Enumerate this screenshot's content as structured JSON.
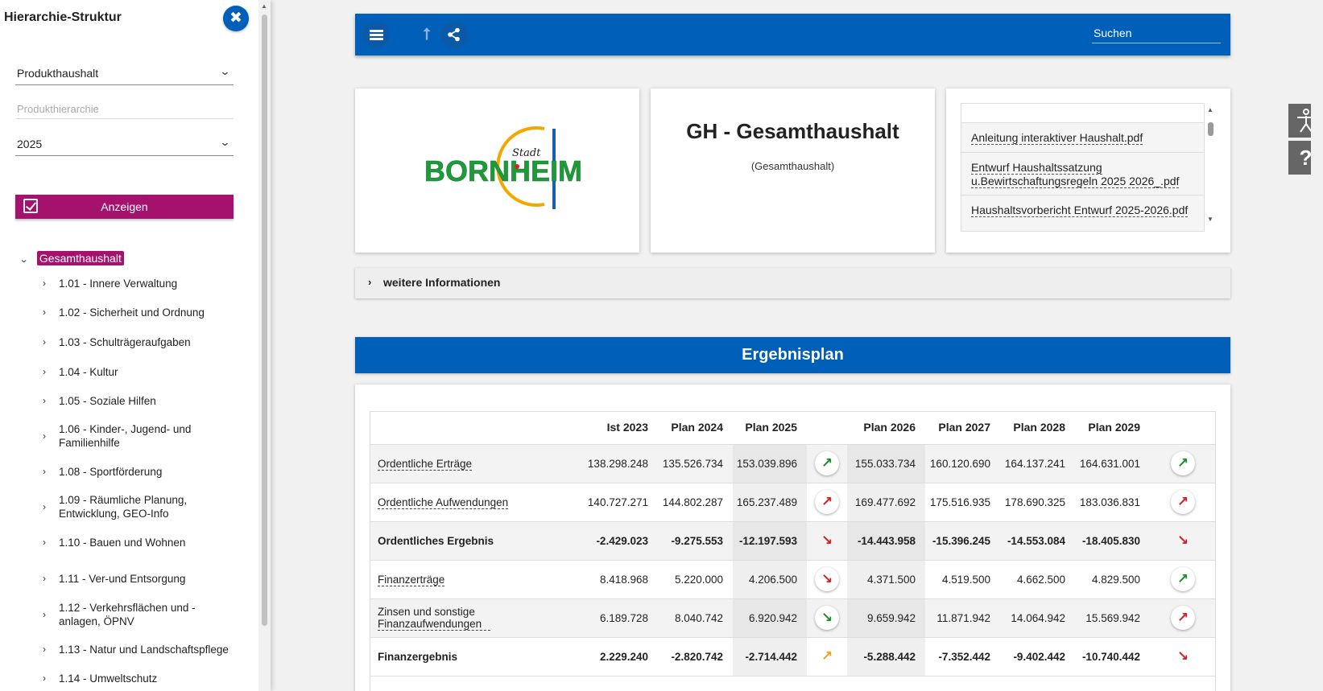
{
  "sidebar": {
    "title": "Hierarchie-Struktur",
    "close_icon": "close-icon",
    "select_budget": "Produkthaushalt",
    "hierarchy_placeholder": "Produkthierarchie",
    "select_year": "2025",
    "show_button": "Anzeigen",
    "tree_root": "Gesamthaushalt",
    "tree_items": [
      "1.01 - Innere Verwaltung",
      "1.02 - Sicherheit und Ordnung",
      "1.03 - Schulträgeraufgaben",
      "1.04 - Kultur",
      "1.05 - Soziale Hilfen",
      "1.06 - Kinder-, Jugend- und Familienhilfe",
      "1.08 - Sportförderung",
      "1.09 - Räumliche Planung, Entwicklung, GEO-Info",
      "1.10 - Bauen und Wohnen",
      "1.11 - Ver-und Entsorgung",
      "1.12 - Verkehrsflächen und -anlagen, ÖPNV",
      "1.13 - Natur und Landschaftspflege",
      "1.14 - Umweltschutz"
    ]
  },
  "topbar": {
    "search_label": "Suchen",
    "icons": [
      "menu-icon",
      "up-arrow-icon",
      "share-icon"
    ]
  },
  "logo": {
    "prefix": "Stadt",
    "name": "BORNHEIM"
  },
  "header": {
    "title": "GH - Gesamthaushalt",
    "subtitle": "(Gesamthaushalt)"
  },
  "documents": [
    "Anleitung interaktiver Haushalt.pdf",
    "Entwurf Haushaltssatzung u.Bewirtschaftungsregeln 2025 2026_.pdf",
    "Haushaltsvorbericht Entwurf 2025-2026.pdf"
  ],
  "info_bar": "weitere Informationen",
  "section": "Ergebnisplan",
  "table": {
    "columns": [
      "Ist 2023",
      "Plan 2024",
      "Plan 2025",
      "Plan 2026",
      "Plan 2027",
      "Plan 2028",
      "Plan 2029"
    ],
    "rows": [
      {
        "name": "Ordentliche Erträge",
        "values": [
          "138.298.248",
          "135.526.734",
          "153.039.896",
          "155.033.734",
          "160.120.690",
          "164.137.241",
          "164.631.001"
        ],
        "trend1": "up-green",
        "trend2": "up-green"
      },
      {
        "name": "Ordentliche Aufwendungen",
        "values": [
          "140.727.271",
          "144.802.287",
          "165.237.489",
          "169.477.692",
          "175.516.935",
          "178.690.325",
          "183.036.831"
        ],
        "trend1": "up-red",
        "trend2": "up-red"
      },
      {
        "name": "Ordentliches Ergebnis",
        "values": [
          "-2.429.023",
          "-9.275.553",
          "-12.197.593",
          "-14.443.958",
          "-15.396.245",
          "-14.553.084",
          "-18.405.830"
        ],
        "trend1": "down-red",
        "trend2": "down-red"
      },
      {
        "name": "Finanzerträge",
        "values": [
          "8.418.968",
          "5.220.000",
          "4.206.500",
          "4.371.500",
          "4.519.500",
          "4.662.500",
          "4.829.500"
        ],
        "trend1": "down-red",
        "trend2": "up-green"
      },
      {
        "name": "Zinsen und sonstige Finanzaufwendungen",
        "values": [
          "6.189.728",
          "8.040.742",
          "6.920.942",
          "9.659.942",
          "11.871.942",
          "14.064.942",
          "15.569.942"
        ],
        "trend1": "down-green",
        "trend2": "up-red"
      },
      {
        "name": "Finanzergebnis",
        "values": [
          "2.229.240",
          "-2.820.742",
          "-2.714.442",
          "-5.288.442",
          "-7.352.442",
          "-9.402.442",
          "-10.740.442"
        ],
        "trend1": "up-orange",
        "trend2": "down-red"
      }
    ]
  },
  "floating": {
    "accessibility_icon": "accessibility-icon",
    "help_icon": "help-icon"
  }
}
